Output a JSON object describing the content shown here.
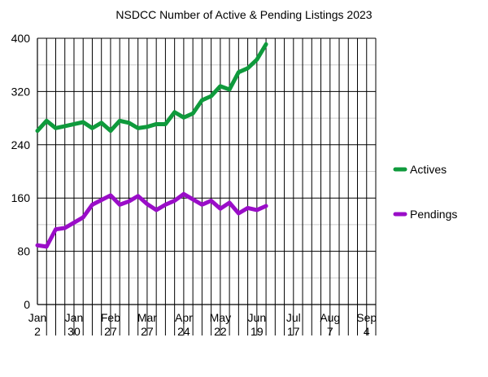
{
  "chart_data": {
    "type": "line",
    "title": "NSDCC Number of Active & Pending Listings 2023",
    "xlabel": "",
    "ylabel": "",
    "ylim": [
      0,
      400
    ],
    "y_ticks": [
      "0",
      "80",
      "160",
      "240",
      "320",
      "400"
    ],
    "x_tick_labels": [
      {
        "month": "Jan",
        "day": "2"
      },
      {
        "month": "Jan",
        "day": "30"
      },
      {
        "month": "Feb",
        "day": "27"
      },
      {
        "month": "Mar",
        "day": "27"
      },
      {
        "month": "Apr",
        "day": "24"
      },
      {
        "month": "May",
        "day": "22"
      },
      {
        "month": "Jun",
        "day": "19"
      },
      {
        "month": "Jul",
        "day": "17"
      },
      {
        "month": "Aug",
        "day": "7"
      },
      {
        "month": "Sep",
        "day": "4"
      }
    ],
    "grid": true,
    "legend_position": "right",
    "series": [
      {
        "name": "Actives",
        "color": "#0f9a3c",
        "values": [
          261,
          276,
          265,
          268,
          271,
          274,
          265,
          273,
          261,
          276,
          273,
          265,
          267,
          271,
          271,
          289,
          281,
          287,
          307,
          313,
          328,
          323,
          349,
          355,
          368,
          391
        ]
      },
      {
        "name": "Pendings",
        "color": "#9a0dc8",
        "values": [
          89,
          87,
          113,
          115,
          123,
          131,
          150,
          157,
          164,
          150,
          155,
          163,
          151,
          142,
          150,
          156,
          166,
          158,
          150,
          156,
          144,
          153,
          137,
          145,
          142,
          148
        ]
      }
    ]
  }
}
